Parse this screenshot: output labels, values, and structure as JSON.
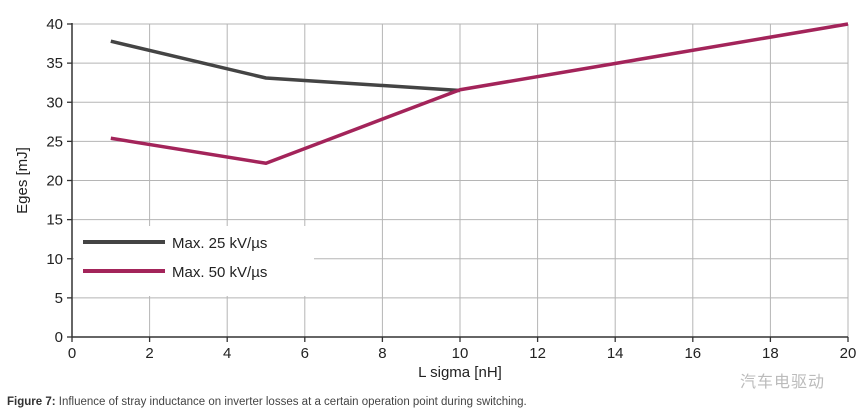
{
  "chart_data": {
    "type": "line",
    "xlabel": "L sigma [nH]",
    "ylabel": "Eges [mJ]",
    "xlim": [
      0,
      20
    ],
    "ylim": [
      0,
      40
    ],
    "xticks": [
      0,
      2,
      4,
      6,
      8,
      10,
      12,
      14,
      16,
      18,
      20
    ],
    "yticks": [
      0,
      5,
      10,
      15,
      20,
      25,
      30,
      35,
      40
    ],
    "grid": true,
    "legend_position": "bottom-left",
    "series": [
      {
        "name": "Max. 25 kV/µs",
        "color": "#444444",
        "x": [
          1,
          5,
          10
        ],
        "y": [
          37.8,
          33.1,
          31.5
        ]
      },
      {
        "name": "Max. 50 kV/µs",
        "color": "#a3245a",
        "x": [
          1,
          5,
          10,
          20
        ],
        "y": [
          25.4,
          22.2,
          31.6,
          40
        ]
      }
    ]
  },
  "caption": {
    "label": "Figure 7:",
    "text": " Influence of stray inductance on inverter losses at a certain operation point during switching."
  },
  "watermark": "汽车电驱动"
}
